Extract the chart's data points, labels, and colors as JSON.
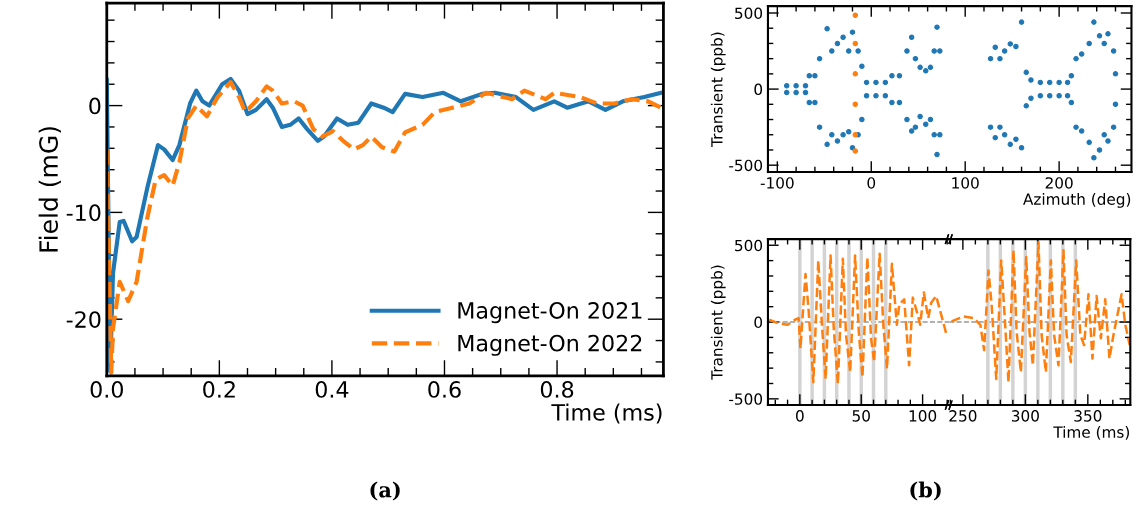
{
  "chart_data": [
    {
      "type": "line",
      "xlabel": "Time (ms)",
      "ylabel": "Field (mG)",
      "xlim": [
        0,
        0.989
      ],
      "ylim": [
        -25.3,
        9.6
      ],
      "xticks": [
        {
          "value": 0,
          "label": "0.0"
        },
        {
          "value": 0.05,
          "label": null
        },
        {
          "value": 0.1,
          "label": null
        },
        {
          "value": 0.15,
          "label": null
        },
        0.2,
        {
          "value": 0.25,
          "label": null
        },
        {
          "value": 0.3,
          "label": null
        },
        {
          "value": 0.35,
          "label": null
        },
        0.4,
        {
          "value": 0.45,
          "label": null
        },
        {
          "value": 0.5,
          "label": null
        },
        {
          "value": 0.55,
          "label": null
        },
        0.6,
        {
          "value": 0.65,
          "label": null
        },
        {
          "value": 0.7,
          "label": null
        },
        {
          "value": 0.75,
          "label": null
        },
        0.8,
        {
          "value": 0.85,
          "label": null
        },
        {
          "value": 0.9,
          "label": null
        },
        {
          "value": 0.95,
          "label": null
        }
      ],
      "yticks": [
        {
          "value": -24,
          "label": null
        },
        {
          "value": -22,
          "label": null
        },
        -20,
        {
          "value": -18,
          "label": null
        },
        {
          "value": -16,
          "label": null
        },
        {
          "value": -14,
          "label": null
        },
        {
          "value": -12,
          "label": null
        },
        -10,
        {
          "value": -8,
          "label": null
        },
        {
          "value": -6,
          "label": null
        },
        {
          "value": -4,
          "label": null
        },
        {
          "value": -2,
          "label": null
        },
        0,
        {
          "value": 2,
          "label": null
        },
        {
          "value": 4,
          "label": null
        },
        {
          "value": 6,
          "label": null
        },
        {
          "value": 8,
          "label": null
        }
      ],
      "legend": "bottom right",
      "annotations": [
        "(a)"
      ],
      "series": [
        {
          "name": "Magnet-On 2021",
          "color": "#1f77b4",
          "line_style": "solid",
          "x": [
            0,
            0.006,
            0.011,
            0.023,
            0.03,
            0.045,
            0.053,
            0.072,
            0.091,
            0.102,
            0.117,
            0.129,
            0.148,
            0.159,
            0.17,
            0.182,
            0.189,
            0.205,
            0.22,
            0.235,
            0.25,
            0.265,
            0.284,
            0.295,
            0.311,
            0.326,
            0.341,
            0.356,
            0.375,
            0.386,
            0.409,
            0.428,
            0.447,
            0.47,
            0.492,
            0.508,
            0.53,
            0.561,
            0.598,
            0.629,
            0.667,
            0.689,
            0.727,
            0.758,
            0.795,
            0.818,
            0.856,
            0.886,
            0.917,
            0.955,
            0.985
          ],
          "values": [
            2.4,
            -24.9,
            -15.7,
            -10.9,
            -10.8,
            -12.7,
            -12.3,
            -7.7,
            -3.7,
            -4.1,
            -5.1,
            -3.7,
            0.2,
            1.4,
            0.4,
            0,
            0.6,
            2.0,
            2.5,
            1.4,
            -0.8,
            -0.4,
            0.6,
            -0.2,
            -2.0,
            -1.8,
            -1.2,
            -2.2,
            -3.3,
            -2.9,
            -1.2,
            -1.8,
            -1.6,
            0.2,
            -0.2,
            -0.6,
            1.1,
            0.8,
            1.2,
            0.4,
            1.1,
            1.2,
            0.8,
            -0.4,
            0.4,
            -0.2,
            0.4,
            -0.4,
            0.4,
            0.8,
            1.2
          ]
        },
        {
          "name": "Magnet-On 2022",
          "color": "#ff7f0e",
          "line_style": "dashed",
          "x": [
            0,
            0.008,
            0.011,
            0.023,
            0.038,
            0.053,
            0.072,
            0.087,
            0.102,
            0.117,
            0.129,
            0.144,
            0.159,
            0.178,
            0.197,
            0.22,
            0.235,
            0.246,
            0.265,
            0.284,
            0.295,
            0.311,
            0.333,
            0.348,
            0.367,
            0.383,
            0.402,
            0.42,
            0.439,
            0.455,
            0.47,
            0.489,
            0.511,
            0.53,
            0.561,
            0.583,
            0.614,
            0.644,
            0.674,
            0.72,
            0.742,
            0.78,
            0.795,
            0.841,
            0.871,
            0.902,
            0.932,
            0.962,
            0.985
          ],
          "values": [
            -4.1,
            -25.0,
            -20.9,
            -16.5,
            -18.3,
            -16.5,
            -10.5,
            -6.9,
            -6.5,
            -7.5,
            -5.3,
            -1.2,
            0,
            -1.0,
            0.8,
            2.2,
            0.8,
            -0.6,
            0.4,
            1.8,
            1.4,
            0.2,
            0.4,
            0,
            -2.2,
            -2.9,
            -2.4,
            -3.3,
            -4.1,
            -3.7,
            -2.9,
            -3.9,
            -4.3,
            -2.5,
            -1.8,
            -0.6,
            -0.2,
            0.2,
            1.2,
            0.6,
            1.4,
            0.6,
            1.2,
            0.8,
            0.2,
            0.2,
            0.6,
            0.4,
            -0.2
          ]
        }
      ]
    },
    {
      "type": "scatter",
      "xlabel": "Azimuth (deg)",
      "ylabel": "Transient (ppb)",
      "xlim": [
        -110,
        277
      ],
      "ylim": [
        -545,
        545
      ],
      "marker": "circle",
      "xticks": [
        -100,
        {
          "value": -80,
          "label": null
        },
        {
          "value": -60,
          "label": null
        },
        {
          "value": -40,
          "label": null
        },
        {
          "value": -20,
          "label": null
        },
        0,
        {
          "value": 20,
          "label": null
        },
        {
          "value": 40,
          "label": null
        },
        {
          "value": 60,
          "label": null
        },
        {
          "value": 80,
          "label": null
        },
        100,
        {
          "value": 120,
          "label": null
        },
        {
          "value": 140,
          "label": null
        },
        {
          "value": 160,
          "label": null
        },
        {
          "value": 180,
          "label": null
        },
        200,
        {
          "value": 220,
          "label": null
        },
        {
          "value": 240,
          "label": null
        },
        {
          "value": 260,
          "label": null
        }
      ],
      "yticks": [
        -500,
        {
          "value": -400,
          "label": null
        },
        {
          "value": -300,
          "label": null
        },
        {
          "value": -200,
          "label": null
        },
        {
          "value": -100,
          "label": null
        },
        0,
        {
          "value": 100,
          "label": null
        },
        {
          "value": 200,
          "label": null
        },
        {
          "value": 300,
          "label": null
        },
        {
          "value": 400,
          "label": null
        },
        500
      ],
      "series": [
        {
          "color": "#1f77b4",
          "x": [
            -90,
            -90,
            -80,
            -80,
            -70,
            -70,
            -66,
            -66,
            -60,
            -60,
            -55,
            -55,
            -47,
            -47,
            -42,
            -42,
            -36,
            -36,
            -30,
            -30,
            -24,
            -24,
            -20,
            -20,
            -14,
            -14,
            -10,
            -10,
            -5,
            -5,
            5,
            5,
            15,
            15,
            22,
            22,
            30,
            30,
            38,
            38,
            43,
            43,
            47,
            47,
            52,
            52,
            58,
            58,
            63,
            63,
            67,
            67,
            70,
            70,
            73,
            73,
            127,
            127,
            132,
            132,
            137,
            137,
            142,
            142,
            148,
            148,
            154,
            154,
            160,
            160,
            165,
            165,
            170,
            170,
            180,
            180,
            190,
            190,
            200,
            200,
            209,
            209,
            213,
            213,
            218,
            218,
            224,
            224,
            232,
            232,
            237,
            237,
            243,
            243,
            248,
            248,
            252,
            252,
            258,
            258,
            260,
            260
          ],
          "values": [
            22,
            -22,
            22,
            -22,
            22,
            -22,
            88,
            -88,
            88,
            -88,
            200,
            -250,
            396,
            -363,
            250,
            -300,
            300,
            -341,
            341,
            -300,
            250,
            -280,
            374,
            -385,
            250,
            -300,
            150,
            -200,
            44,
            -44,
            44,
            -44,
            44,
            -44,
            88,
            -88,
            88,
            -88,
            250,
            -200,
            341,
            -275,
            200,
            -250,
            143,
            -180,
            120,
            -231,
            143,
            -200,
            250,
            -300,
            407,
            -430,
            250,
            -300,
            200,
            -250,
            275,
            -319,
            200,
            -250,
            250,
            -300,
            297,
            -363,
            280,
            -330,
            440,
            -385,
            110,
            -110,
            60,
            -60,
            44,
            -44,
            44,
            -44,
            44,
            -44,
            44,
            -44,
            88,
            -88,
            200,
            -250,
            231,
            -275,
            300,
            -350,
            440,
            -451,
            350,
            -400,
            300,
            -300,
            363,
            -341,
            250,
            -250,
            100,
            -100
          ]
        },
        {
          "color": "#ff7f0e",
          "x": [
            -17,
            -17,
            -17,
            -17,
            -17,
            -17
          ],
          "values": [
            485,
            300,
            100,
            -100,
            -300,
            -407
          ]
        }
      ]
    },
    {
      "type": "line",
      "ylabel": "Transient (ppb)",
      "xlim": [
        -26,
        121.6
      ],
      "ylim": [
        -540,
        540
      ],
      "annotations": [
        "(b)"
      ],
      "xticks": [
        {
          "value": -20,
          "label": null
        },
        {
          "value": -10,
          "label": null
        },
        0,
        {
          "value": 10,
          "label": null
        },
        {
          "value": 20,
          "label": null
        },
        {
          "value": 30,
          "label": null
        },
        {
          "value": 40,
          "label": null
        },
        50,
        {
          "value": 60,
          "label": null
        },
        {
          "value": 70,
          "label": null
        },
        {
          "value": 80,
          "label": null
        },
        {
          "value": 90,
          "label": null
        },
        100,
        {
          "value": 110,
          "label": null
        },
        {
          "value": 120,
          "label": null
        }
      ],
      "yticks": [
        -500,
        {
          "value": -400,
          "label": null
        },
        {
          "value": -300,
          "label": null
        },
        {
          "value": -200,
          "label": null
        },
        {
          "value": -100,
          "label": null
        },
        0,
        {
          "value": 100,
          "label": null
        },
        {
          "value": 200,
          "label": null
        },
        {
          "value": 300,
          "label": null
        },
        {
          "value": 400,
          "label": null
        },
        500
      ],
      "ref_lines": [
        {
          "axis": "y",
          "value": 0,
          "color": "#999999",
          "line_style": "dashed"
        },
        {
          "axis": "x",
          "value": 0,
          "color": "#d3d3d3"
        },
        {
          "axis": "x",
          "value": 10,
          "color": "#d3d3d3"
        },
        {
          "axis": "x",
          "value": 20,
          "color": "#d3d3d3"
        },
        {
          "axis": "x",
          "value": 30,
          "color": "#d3d3d3"
        },
        {
          "axis": "x",
          "value": 40,
          "color": "#d3d3d3"
        },
        {
          "axis": "x",
          "value": 50,
          "color": "#d3d3d3"
        },
        {
          "axis": "x",
          "value": 60,
          "color": "#d3d3d3"
        },
        {
          "axis": "x",
          "value": 70,
          "color": "#d3d3d3"
        }
      ],
      "series": [
        {
          "color": "#ff7f0e",
          "line_style": "dashed",
          "x": [
            -25,
            -18,
            -10,
            -4,
            -1,
            0.5,
            4.6,
            7,
            11,
            15,
            18,
            21,
            25,
            27.6,
            31,
            35,
            37.6,
            41,
            45,
            48,
            51,
            55,
            58,
            60.5,
            65,
            68,
            71,
            75,
            79,
            81,
            85,
            89,
            92,
            96,
            98,
            101,
            104.6,
            107,
            111,
            117,
            119.5
          ],
          "values": [
            15,
            -7,
            -18,
            15,
            26,
            -172,
            313,
            93,
            -392,
            401,
            -18,
            -370,
            434,
            -40,
            -403,
            412,
            -84,
            -326,
            434,
            -62,
            -359,
            423,
            -106,
            -260,
            445,
            -18,
            -304,
            379,
            -18,
            115,
            148,
            -282,
            159,
            48,
            -18,
            192,
            26,
            126,
            170,
            -7,
            -84
          ]
        }
      ]
    },
    {
      "type": "line",
      "xlabel": "Time (ms)",
      "xlim": [
        239,
        384
      ],
      "ylim": [
        -540,
        540
      ],
      "tick_labels": "x",
      "xticks": [
        {
          "value": 240,
          "label": null
        },
        250,
        {
          "value": 260,
          "label": null
        },
        {
          "value": 270,
          "label": null
        },
        {
          "value": 280,
          "label": null
        },
        {
          "value": 290,
          "label": null
        },
        300,
        {
          "value": 310,
          "label": null
        },
        {
          "value": 320,
          "label": null
        },
        {
          "value": 330,
          "label": null
        },
        {
          "value": 340,
          "label": null
        },
        350,
        {
          "value": 360,
          "label": null
        },
        {
          "value": 370,
          "label": null
        },
        {
          "value": 380,
          "label": null
        }
      ],
      "yticks": [
        -500,
        {
          "value": -400,
          "label": null
        },
        {
          "value": -300,
          "label": null
        },
        {
          "value": -200,
          "label": null
        },
        {
          "value": -100,
          "label": null
        },
        0,
        {
          "value": 100,
          "label": null
        },
        {
          "value": 200,
          "label": null
        },
        {
          "value": 300,
          "label": null
        },
        {
          "value": 400,
          "label": null
        },
        500
      ],
      "ref_lines": [
        {
          "axis": "y",
          "value": 0,
          "color": "#999999",
          "line_style": "dashed"
        },
        {
          "axis": "x",
          "value": 270,
          "color": "#d3d3d3"
        },
        {
          "axis": "x",
          "value": 280,
          "color": "#d3d3d3"
        },
        {
          "axis": "x",
          "value": 290,
          "color": "#d3d3d3"
        },
        {
          "axis": "x",
          "value": 300,
          "color": "#d3d3d3"
        },
        {
          "axis": "x",
          "value": 310,
          "color": "#d3d3d3"
        },
        {
          "axis": "x",
          "value": 320,
          "color": "#d3d3d3"
        },
        {
          "axis": "x",
          "value": 330,
          "color": "#d3d3d3"
        },
        {
          "axis": "x",
          "value": 340,
          "color": "#d3d3d3"
        }
      ],
      "series": [
        {
          "color": "#ff7f0e",
          "line_style": "dashed",
          "x": [
            241,
            250.5,
            258.5,
            264,
            267,
            270.5,
            273,
            276.7,
            280.7,
            284,
            286.5,
            290.5,
            293,
            296.4,
            300.7,
            303.3,
            306,
            310.5,
            313,
            316.4,
            320.4,
            323,
            326.5,
            330.5,
            333,
            336.4,
            340.7,
            344,
            347,
            350.5,
            353.7,
            357,
            360.4,
            363.9,
            367.3,
            370.5,
            377,
            380,
            383.5
          ],
          "values": [
            4,
            37,
            26,
            -18,
            -183,
            335,
            115,
            -370,
            401,
            -40,
            -392,
            467,
            -62,
            -326,
            423,
            -62,
            -282,
            520,
            -84,
            -326,
            401,
            -84,
            -282,
            467,
            -84,
            -260,
            401,
            -84,
            -150,
            181,
            -238,
            170,
            -106,
            148,
            -238,
            -84,
            181,
            -18,
            -150
          ]
        }
      ]
    }
  ]
}
